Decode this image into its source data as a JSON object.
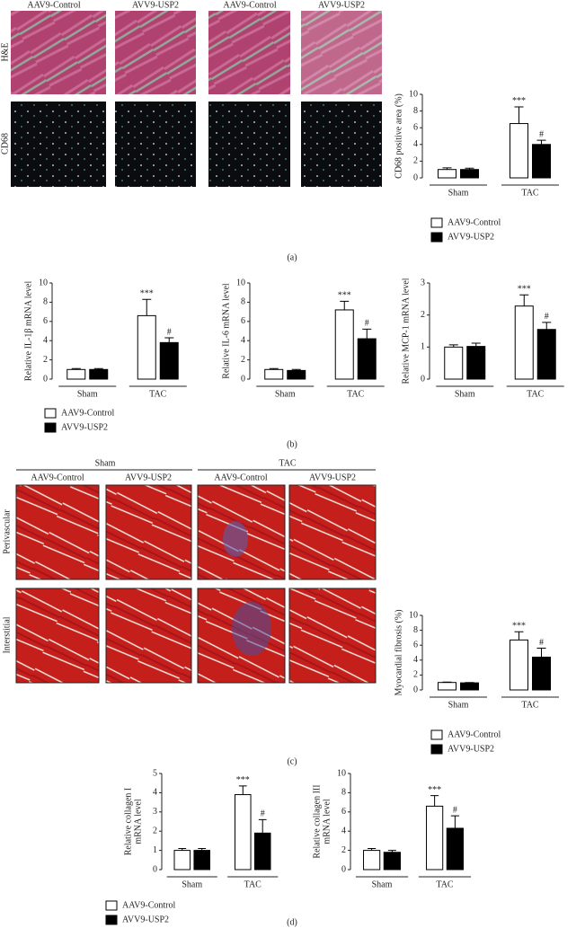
{
  "panels": {
    "a": {
      "label": "(a)",
      "columns": [
        "AAV9-Control",
        "AVV9-USP2",
        "AAV9-Control",
        "AVV9-USP2"
      ],
      "rows": [
        "H&E",
        "CD68"
      ]
    },
    "b": {
      "label": "(b)"
    },
    "c": {
      "label": "(c)",
      "groups": [
        "Sham",
        "TAC"
      ],
      "columns": [
        "AAV9-Control",
        "AVV9-USP2",
        "AAV9-Control",
        "AVV9-USP2"
      ],
      "rows": [
        "Perivascular",
        "Interstitial"
      ]
    },
    "d": {
      "label": "(d)"
    }
  },
  "chart_data": [
    {
      "type": "bar",
      "ylabel": [
        "CD68 positive area (%)"
      ],
      "categories": [
        "Sham",
        "TAC"
      ],
      "ylim": [
        0,
        10
      ],
      "yticks": [
        0,
        2,
        4,
        6,
        8,
        10
      ],
      "legend": true,
      "series": [
        {
          "name": "AAV9-Control",
          "color": "#ffffff",
          "values": [
            1,
            6.5
          ],
          "errors": [
            0.2,
            2.0
          ]
        },
        {
          "name": "AVV9-USP2",
          "color": "#000000",
          "values": [
            1,
            4
          ],
          "errors": [
            0.15,
            0.5
          ]
        }
      ],
      "annotations": [
        "***",
        "#"
      ]
    },
    {
      "type": "bar",
      "ylabel": [
        "Relative IL-1β mRNA level"
      ],
      "categories": [
        "Sham",
        "TAC"
      ],
      "ylim": [
        0,
        10
      ],
      "yticks": [
        0,
        2,
        4,
        6,
        8,
        10
      ],
      "legend": true,
      "series": [
        {
          "name": "AAV9-Control",
          "color": "#ffffff",
          "values": [
            1,
            6.6
          ],
          "errors": [
            0.1,
            1.7
          ]
        },
        {
          "name": "AVV9-USP2",
          "color": "#000000",
          "values": [
            1,
            3.8
          ],
          "errors": [
            0.1,
            0.5
          ]
        }
      ],
      "annotations": [
        "***",
        "#"
      ]
    },
    {
      "type": "bar",
      "ylabel": [
        "Relative IL-6 mRNA level"
      ],
      "categories": [
        "Sham",
        "TAC"
      ],
      "ylim": [
        0,
        10
      ],
      "yticks": [
        0,
        2,
        4,
        6,
        8,
        10
      ],
      "legend": false,
      "series": [
        {
          "name": "AAV9-Control",
          "color": "#ffffff",
          "values": [
            1,
            7.2
          ],
          "errors": [
            0.1,
            0.9
          ]
        },
        {
          "name": "AVV9-USP2",
          "color": "#000000",
          "values": [
            0.9,
            4.2
          ],
          "errors": [
            0.1,
            1.0
          ]
        }
      ],
      "annotations": [
        "***",
        "#"
      ]
    },
    {
      "type": "bar",
      "ylabel": [
        "Relative MCP-1 mRNA level"
      ],
      "categories": [
        "Sham",
        "TAC"
      ],
      "ylim": [
        0,
        3
      ],
      "yticks": [
        0,
        1,
        2,
        3
      ],
      "legend": false,
      "series": [
        {
          "name": "AAV9-Control",
          "color": "#ffffff",
          "values": [
            1.0,
            2.28
          ],
          "errors": [
            0.07,
            0.35
          ]
        },
        {
          "name": "AVV9-USP2",
          "color": "#000000",
          "values": [
            1.02,
            1.55
          ],
          "errors": [
            0.1,
            0.22
          ]
        }
      ],
      "annotations": [
        "***",
        "#"
      ]
    },
    {
      "type": "bar",
      "ylabel": [
        "Myocardial fibrosis (%)"
      ],
      "categories": [
        "Sham",
        "TAC"
      ],
      "ylim": [
        0,
        10
      ],
      "yticks": [
        0,
        2,
        4,
        6,
        8,
        10
      ],
      "legend": true,
      "series": [
        {
          "name": "AAV9-Control",
          "color": "#ffffff",
          "values": [
            1,
            6.7
          ],
          "errors": [
            0.05,
            1.1
          ]
        },
        {
          "name": "AVV9-USP2",
          "color": "#000000",
          "values": [
            0.95,
            4.4
          ],
          "errors": [
            0.05,
            1.2
          ]
        }
      ],
      "annotations": [
        "***",
        "#"
      ]
    },
    {
      "type": "bar",
      "ylabel": [
        "Relative collagen I",
        "mRNA level"
      ],
      "categories": [
        "Sham",
        "TAC"
      ],
      "ylim": [
        0,
        5
      ],
      "yticks": [
        0,
        1,
        2,
        3,
        4,
        5
      ],
      "legend": true,
      "series": [
        {
          "name": "AAV9-Control",
          "color": "#ffffff",
          "values": [
            1,
            3.9
          ],
          "errors": [
            0.1,
            0.45
          ]
        },
        {
          "name": "AVV9-USP2",
          "color": "#000000",
          "values": [
            1,
            1.9
          ],
          "errors": [
            0.1,
            0.7
          ]
        }
      ],
      "annotations": [
        "***",
        "#"
      ]
    },
    {
      "type": "bar",
      "ylabel": [
        "Relative collagen III",
        "mRNA level"
      ],
      "categories": [
        "Sham",
        "TAC"
      ],
      "ylim": [
        0,
        10
      ],
      "yticks": [
        0,
        2,
        4,
        6,
        8,
        10
      ],
      "legend": false,
      "series": [
        {
          "name": "AAV9-Control",
          "color": "#ffffff",
          "values": [
            2,
            6.6
          ],
          "errors": [
            0.2,
            1.1
          ]
        },
        {
          "name": "AVV9-USP2",
          "color": "#000000",
          "values": [
            1.8,
            4.3
          ],
          "errors": [
            0.2,
            1.3
          ]
        }
      ],
      "annotations": [
        "***",
        "#"
      ]
    }
  ]
}
